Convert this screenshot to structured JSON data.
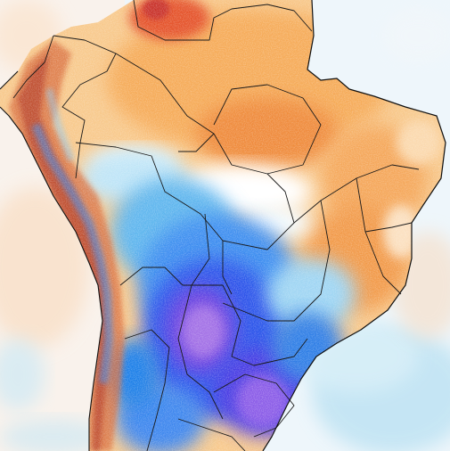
{
  "map": {
    "type": "temperature-anomaly-map",
    "region": "South America",
    "has_legend": false,
    "has_title": false,
    "colors": {
      "ocean_near_zero": "#eef6fb",
      "ocean_light_blue": "#bfe3f3",
      "ocean_pale_orange": "#f9dcc0",
      "warm_light": "#fbd49b",
      "warm": "#f6ab59",
      "warm_strong": "#ef8a3a",
      "hot": "#e5522a",
      "hot_extreme": "#c9302c",
      "cool_light": "#bfe5f7",
      "cool": "#5fb6ee",
      "cold": "#1f7fe8",
      "cold_strong": "#2c3fe6",
      "cold_extreme": "#6b3fe0",
      "cold_max": "#b07be8",
      "border_line": "#1a1a1a",
      "coastline": "#111111"
    },
    "features": [
      {
        "name": "warm-anomaly-northern-south-america"
      },
      {
        "name": "cold-anomaly-paraguay-southern-brazil"
      },
      {
        "name": "near-zero-anomaly-central-brazil"
      },
      {
        "name": "mixed-anomaly-andes"
      }
    ]
  }
}
